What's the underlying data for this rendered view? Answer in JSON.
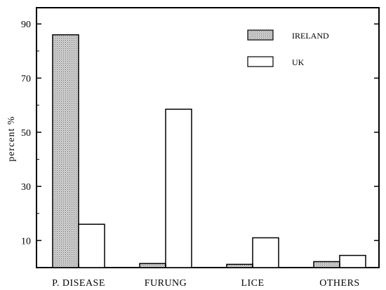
{
  "chart_data": {
    "type": "bar",
    "categories": [
      "P. DISEASE",
      "FURUNG",
      "LICE",
      "OTHERS"
    ],
    "series": [
      {
        "name": "IRELAND",
        "values": [
          86,
          1.5,
          1.2,
          2.2
        ],
        "color": "#c8c8c8",
        "pattern": "stipple"
      },
      {
        "name": "UK",
        "values": [
          16,
          58.5,
          11,
          4.5
        ],
        "color": "#ffffff"
      }
    ],
    "ylabel": "percent %",
    "yticks": [
      10,
      30,
      50,
      70,
      90
    ],
    "ylim": [
      0,
      96
    ],
    "legend_position": "top-right",
    "grid": false
  }
}
